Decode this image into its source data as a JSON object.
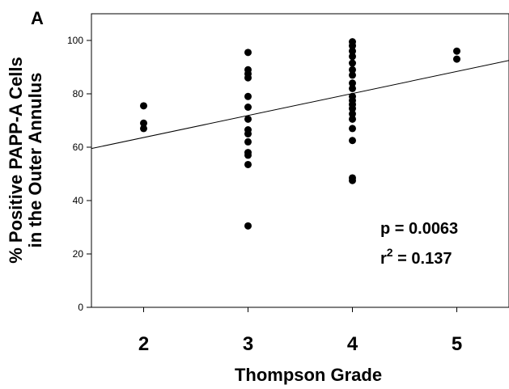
{
  "chart_data": {
    "type": "scatter",
    "panel_label": "A",
    "xlabel": "Thompson Grade",
    "ylabel_line1": "% Positive PAPP-A Cells",
    "ylabel_line2": "in the Outer Annulus",
    "xlim": [
      1.5,
      5.5
    ],
    "ylim": [
      0,
      110
    ],
    "x_ticks": [
      2,
      3,
      4,
      5
    ],
    "x_tick_labels": [
      "2",
      "3",
      "4",
      "5"
    ],
    "y_ticks": [
      0,
      20,
      40,
      60,
      80,
      100
    ],
    "y_tick_labels": [
      "0",
      "20",
      "40",
      "60",
      "80",
      "100"
    ],
    "grid": false,
    "points": [
      {
        "x": 2,
        "y": 75.5
      },
      {
        "x": 2,
        "y": 69
      },
      {
        "x": 2,
        "y": 67
      },
      {
        "x": 3,
        "y": 95.5
      },
      {
        "x": 3,
        "y": 89
      },
      {
        "x": 3,
        "y": 87.5
      },
      {
        "x": 3,
        "y": 86
      },
      {
        "x": 3,
        "y": 79
      },
      {
        "x": 3,
        "y": 75
      },
      {
        "x": 3,
        "y": 70.5
      },
      {
        "x": 3,
        "y": 66.5
      },
      {
        "x": 3,
        "y": 65
      },
      {
        "x": 3,
        "y": 62
      },
      {
        "x": 3,
        "y": 58
      },
      {
        "x": 3,
        "y": 57
      },
      {
        "x": 3,
        "y": 53.5
      },
      {
        "x": 3,
        "y": 30.5
      },
      {
        "x": 4,
        "y": 99.5
      },
      {
        "x": 4,
        "y": 98
      },
      {
        "x": 4,
        "y": 96
      },
      {
        "x": 4,
        "y": 94
      },
      {
        "x": 4,
        "y": 91.5
      },
      {
        "x": 4,
        "y": 89
      },
      {
        "x": 4,
        "y": 87
      },
      {
        "x": 4,
        "y": 84
      },
      {
        "x": 4,
        "y": 82
      },
      {
        "x": 4,
        "y": 79
      },
      {
        "x": 4,
        "y": 77.5
      },
      {
        "x": 4,
        "y": 76
      },
      {
        "x": 4,
        "y": 74.5
      },
      {
        "x": 4,
        "y": 72.5
      },
      {
        "x": 4,
        "y": 70.5
      },
      {
        "x": 4,
        "y": 67
      },
      {
        "x": 4,
        "y": 62.5
      },
      {
        "x": 4,
        "y": 48.5
      },
      {
        "x": 4,
        "y": 47.5
      },
      {
        "x": 5,
        "y": 96
      },
      {
        "x": 5,
        "y": 93
      }
    ],
    "regression_line": {
      "x": [
        1.5,
        5.5
      ],
      "y": [
        59.5,
        92.5
      ]
    },
    "annotations": {
      "p_value": "p = 0.0063",
      "r2_prefix": "r",
      "r2_superscript": "2",
      "r2_value": " = 0.137"
    },
    "marker_color": "#000000",
    "line_color": "#000000"
  }
}
